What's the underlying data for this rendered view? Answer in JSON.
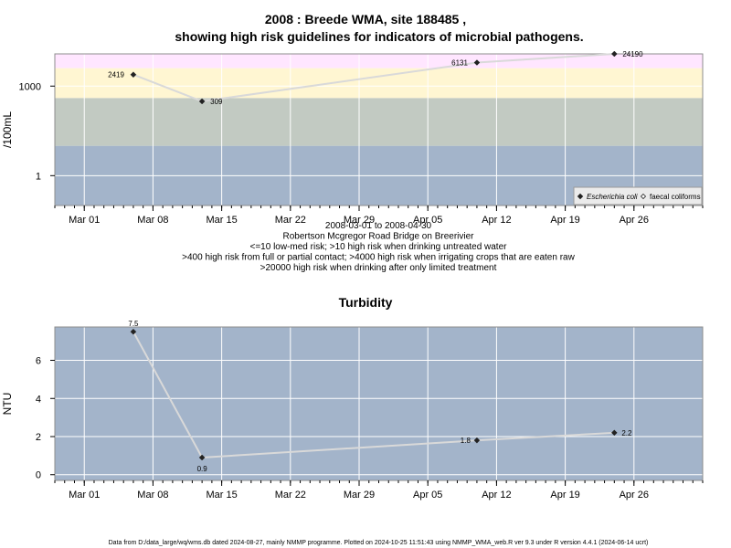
{
  "chart_data": [
    {
      "type": "line",
      "title": "2008 : Breede WMA, site 188485 ,",
      "title_line2": "showing high risk guidelines for indicators of microbial pathogens.",
      "ylabel": "/100mL",
      "yscale": "log10",
      "ylim": [
        0.1,
        12000
      ],
      "yticks": [
        1,
        1000
      ],
      "ytick_labels": [
        "1",
        "1000"
      ],
      "x_range": [
        "2008-02-27",
        "2008-05-03"
      ],
      "x_ticks": [
        "2008-03-01",
        "2008-03-08",
        "2008-03-15",
        "2008-03-22",
        "2008-03-29",
        "2008-04-05",
        "2008-04-12",
        "2008-04-19",
        "2008-04-26"
      ],
      "x_tick_labels": [
        "Mar 01",
        "Mar 08",
        "Mar 15",
        "Mar 22",
        "Mar 29",
        "Apr 05",
        "Apr 12",
        "Apr 19",
        "Apr 26"
      ],
      "bands": [
        {
          "from": 0.1,
          "to": 10,
          "color": "#a3b4ca"
        },
        {
          "from": 10,
          "to": 400,
          "color": "#c2cac2"
        },
        {
          "from": 400,
          "to": 4000,
          "color": "#fff6d2"
        },
        {
          "from": 4000,
          "to": 20000,
          "color": "#ffe6ff"
        },
        {
          "from": 20000,
          "to": 12000000,
          "color": "#ffc2cc"
        }
      ],
      "grid": true,
      "legend_position": "bottom-right",
      "line_color": "#d9d9d9",
      "series": [
        {
          "name": "Escherichia coli",
          "marker": "filled-diamond",
          "points": [
            {
              "x": "2008-03-06",
              "y": 2419,
              "label": "2419"
            },
            {
              "x": "2008-03-13",
              "y": 309,
              "label": "309"
            },
            {
              "x": "2008-04-10",
              "y": 6131,
              "label": "6131"
            },
            {
              "x": "2008-04-24",
              "y": 24190,
              "label": "24190"
            }
          ]
        },
        {
          "name": "faecal coliforms",
          "marker": "open-diamond",
          "points": []
        }
      ],
      "subtitle_lines": [
        "2008-03-01 to 2008-04-30",
        "Robertson Mcgregor Road Bridge on Breerivier",
        "<=10 low-med risk; >10 high risk when drinking untreated water",
        ">400 high risk from full or partial contact; >4000 high risk when irrigating crops that are eaten raw",
        ">20000 high risk when drinking after only limited treatment"
      ]
    },
    {
      "type": "line",
      "title": "Turbidity",
      "ylabel": "NTU",
      "ylim": [
        -0.3,
        7.75
      ],
      "yticks": [
        0,
        2,
        4,
        6
      ],
      "ytick_labels": [
        "0",
        "2",
        "4",
        "6"
      ],
      "x_range": [
        "2008-02-27",
        "2008-05-03"
      ],
      "x_ticks": [
        "2008-03-01",
        "2008-03-08",
        "2008-03-15",
        "2008-03-22",
        "2008-03-29",
        "2008-04-05",
        "2008-04-12",
        "2008-04-19",
        "2008-04-26"
      ],
      "x_tick_labels": [
        "Mar 01",
        "Mar 08",
        "Mar 15",
        "Mar 22",
        "Mar 29",
        "Apr 05",
        "Apr 12",
        "Apr 19",
        "Apr 26"
      ],
      "background": "#a3b4ca",
      "grid": true,
      "line_color": "#d9d9d9",
      "series": [
        {
          "name": "",
          "marker": "filled-diamond",
          "points": [
            {
              "x": "2008-03-06",
              "y": 7.5,
              "label": "7.5"
            },
            {
              "x": "2008-03-13",
              "y": 0.9,
              "label": "0.9"
            },
            {
              "x": "2008-04-10",
              "y": 1.8,
              "label": "1.8"
            },
            {
              "x": "2008-04-24",
              "y": 2.2,
              "label": "2.2"
            }
          ]
        }
      ]
    }
  ],
  "footer": "Data from D:/data_large/wq/wms.db dated 2024-08-27, mainly NMMP programme. Plotted on 2024-10-25 11:51:43 using NMMP_WMA_web.R ver 9.3 under R version 4.4.1 (2024-06-14 ucrt)"
}
